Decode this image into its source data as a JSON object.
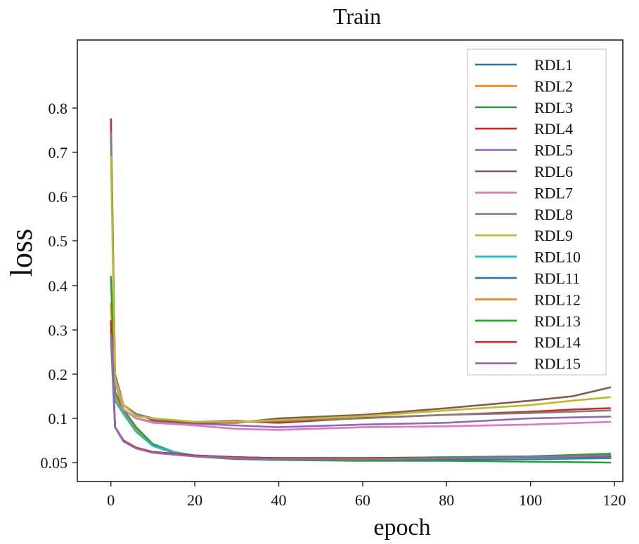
{
  "chart_data": {
    "type": "line",
    "title": "Train",
    "xlabel": "epoch",
    "ylabel": "loss",
    "xlim": [
      -8,
      122
    ],
    "xticks": [
      0,
      20,
      40,
      60,
      80,
      100,
      120
    ],
    "yticks": [
      0.05,
      0.1,
      0.2,
      0.3,
      0.4,
      0.5,
      0.6,
      0.7,
      0.8
    ],
    "ytick_labels": [
      "0.05",
      "0.1",
      "0.2",
      "0.3",
      "0.4",
      "0.5",
      "0.6",
      "0.7",
      "0.8"
    ],
    "grid": false,
    "legend_position": "top-right",
    "series": [
      {
        "name": "RDL1",
        "color": "#1f77b4",
        "values": [
          [
            0,
            0.29
          ],
          [
            1,
            0.14
          ],
          [
            3,
            0.11
          ],
          [
            6,
            0.085
          ],
          [
            10,
            0.069
          ],
          [
            15,
            0.061
          ],
          [
            20,
            0.057
          ],
          [
            30,
            0.054
          ],
          [
            40,
            0.053
          ],
          [
            60,
            0.053
          ],
          [
            80,
            0.053
          ],
          [
            100,
            0.054
          ],
          [
            119,
            0.055
          ]
        ]
      },
      {
        "name": "RDL2",
        "color": "#ff7f0e",
        "values": [
          [
            0,
            0.36
          ],
          [
            1,
            0.15
          ],
          [
            3,
            0.115
          ],
          [
            6,
            0.088
          ],
          [
            10,
            0.07
          ],
          [
            15,
            0.062
          ],
          [
            20,
            0.058
          ],
          [
            30,
            0.055
          ],
          [
            40,
            0.054
          ],
          [
            60,
            0.054
          ],
          [
            80,
            0.055
          ],
          [
            100,
            0.057
          ],
          [
            119,
            0.058
          ]
        ]
      },
      {
        "name": "RDL3",
        "color": "#2ca02c",
        "values": [
          [
            0,
            0.42
          ],
          [
            1,
            0.16
          ],
          [
            3,
            0.12
          ],
          [
            6,
            0.09
          ],
          [
            10,
            0.071
          ],
          [
            15,
            0.062
          ],
          [
            20,
            0.057
          ],
          [
            30,
            0.054
          ],
          [
            40,
            0.053
          ],
          [
            60,
            0.052
          ],
          [
            80,
            0.052
          ],
          [
            100,
            0.051
          ],
          [
            119,
            0.05
          ]
        ]
      },
      {
        "name": "RDL4",
        "color": "#d62728",
        "values": [
          [
            0,
            0.775
          ],
          [
            1,
            0.2
          ],
          [
            3,
            0.13
          ],
          [
            6,
            0.11
          ],
          [
            10,
            0.1
          ],
          [
            20,
            0.096
          ],
          [
            30,
            0.097
          ],
          [
            40,
            0.095
          ],
          [
            60,
            0.101
          ],
          [
            80,
            0.108
          ],
          [
            100,
            0.115
          ],
          [
            110,
            0.12
          ],
          [
            119,
            0.123
          ]
        ]
      },
      {
        "name": "RDL5",
        "color": "#9467bd",
        "values": [
          [
            0,
            0.3
          ],
          [
            1,
            0.2
          ],
          [
            3,
            0.12
          ],
          [
            6,
            0.1
          ],
          [
            10,
            0.096
          ],
          [
            20,
            0.094
          ],
          [
            30,
            0.092
          ],
          [
            40,
            0.09
          ],
          [
            60,
            0.093
          ],
          [
            80,
            0.095
          ],
          [
            100,
            0.1
          ],
          [
            110,
            0.102
          ],
          [
            119,
            0.104
          ]
        ]
      },
      {
        "name": "RDL6",
        "color": "#8c564b",
        "values": [
          [
            0,
            0.74
          ],
          [
            1,
            0.19
          ],
          [
            3,
            0.13
          ],
          [
            6,
            0.11
          ],
          [
            10,
            0.098
          ],
          [
            20,
            0.095
          ],
          [
            30,
            0.095
          ],
          [
            40,
            0.1
          ],
          [
            60,
            0.108
          ],
          [
            80,
            0.123
          ],
          [
            100,
            0.14
          ],
          [
            110,
            0.15
          ],
          [
            119,
            0.17
          ]
        ]
      },
      {
        "name": "RDL7",
        "color": "#e377c2",
        "values": [
          [
            0,
            0.3
          ],
          [
            1,
            0.18
          ],
          [
            3,
            0.12
          ],
          [
            6,
            0.1
          ],
          [
            10,
            0.095
          ],
          [
            20,
            0.092
          ],
          [
            30,
            0.088
          ],
          [
            40,
            0.087
          ],
          [
            60,
            0.09
          ],
          [
            80,
            0.091
          ],
          [
            100,
            0.093
          ],
          [
            119,
            0.096
          ]
        ]
      },
      {
        "name": "RDL8",
        "color": "#7f7f7f",
        "values": [
          [
            0,
            0.745
          ],
          [
            1,
            0.19
          ],
          [
            3,
            0.13
          ],
          [
            6,
            0.11
          ],
          [
            10,
            0.1
          ],
          [
            20,
            0.096
          ],
          [
            30,
            0.096
          ],
          [
            40,
            0.097
          ],
          [
            60,
            0.1
          ],
          [
            80,
            0.108
          ],
          [
            100,
            0.112
          ],
          [
            110,
            0.115
          ],
          [
            119,
            0.118
          ]
        ]
      },
      {
        "name": "RDL9",
        "color": "#bcbd22",
        "values": [
          [
            0,
            0.69
          ],
          [
            1,
            0.19
          ],
          [
            3,
            0.13
          ],
          [
            6,
            0.105
          ],
          [
            10,
            0.1
          ],
          [
            20,
            0.096
          ],
          [
            30,
            0.096
          ],
          [
            40,
            0.098
          ],
          [
            60,
            0.105
          ],
          [
            80,
            0.118
          ],
          [
            100,
            0.13
          ],
          [
            110,
            0.14
          ],
          [
            119,
            0.148
          ]
        ]
      },
      {
        "name": "RDL10",
        "color": "#17becf",
        "values": [
          [
            0,
            0.3
          ],
          [
            1,
            0.14
          ],
          [
            3,
            0.11
          ],
          [
            6,
            0.085
          ],
          [
            10,
            0.069
          ],
          [
            15,
            0.062
          ],
          [
            20,
            0.058
          ],
          [
            30,
            0.055
          ],
          [
            40,
            0.054
          ],
          [
            60,
            0.054
          ],
          [
            80,
            0.055
          ],
          [
            100,
            0.055
          ],
          [
            119,
            0.056
          ]
        ]
      },
      {
        "name": "RDL11",
        "color": "#1f77b4",
        "values": [
          [
            0,
            0.28
          ],
          [
            1,
            0.09
          ],
          [
            3,
            0.075
          ],
          [
            6,
            0.066
          ],
          [
            10,
            0.062
          ],
          [
            15,
            0.06
          ],
          [
            20,
            0.058
          ],
          [
            30,
            0.056
          ],
          [
            40,
            0.055
          ],
          [
            60,
            0.055
          ],
          [
            80,
            0.055
          ],
          [
            100,
            0.056
          ],
          [
            119,
            0.057
          ]
        ]
      },
      {
        "name": "RDL12",
        "color": "#ff7f0e",
        "values": [
          [
            0,
            0.32
          ],
          [
            1,
            0.09
          ],
          [
            3,
            0.074
          ],
          [
            6,
            0.066
          ],
          [
            10,
            0.062
          ],
          [
            15,
            0.06
          ],
          [
            20,
            0.058
          ],
          [
            30,
            0.056
          ],
          [
            40,
            0.055
          ],
          [
            60,
            0.055
          ],
          [
            80,
            0.056
          ],
          [
            100,
            0.057
          ],
          [
            119,
            0.058
          ]
        ]
      },
      {
        "name": "RDL13",
        "color": "#2ca02c",
        "values": [
          [
            0,
            0.3
          ],
          [
            1,
            0.09
          ],
          [
            3,
            0.074
          ],
          [
            6,
            0.066
          ],
          [
            10,
            0.062
          ],
          [
            15,
            0.06
          ],
          [
            20,
            0.058
          ],
          [
            30,
            0.056
          ],
          [
            40,
            0.055
          ],
          [
            60,
            0.055
          ],
          [
            80,
            0.056
          ],
          [
            100,
            0.057
          ],
          [
            119,
            0.06
          ]
        ]
      },
      {
        "name": "RDL14",
        "color": "#d62728",
        "values": [
          [
            0,
            0.32
          ],
          [
            1,
            0.09
          ],
          [
            3,
            0.075
          ],
          [
            6,
            0.067
          ],
          [
            10,
            0.062
          ],
          [
            15,
            0.06
          ],
          [
            20,
            0.058
          ],
          [
            30,
            0.056
          ],
          [
            40,
            0.055
          ],
          [
            60,
            0.055
          ],
          [
            80,
            0.055
          ],
          [
            100,
            0.056
          ],
          [
            119,
            0.057
          ]
        ]
      },
      {
        "name": "RDL15",
        "color": "#9467bd",
        "values": [
          [
            0,
            0.29
          ],
          [
            1,
            0.09
          ],
          [
            3,
            0.074
          ],
          [
            6,
            0.066
          ],
          [
            10,
            0.061
          ],
          [
            15,
            0.059
          ],
          [
            20,
            0.057
          ],
          [
            30,
            0.055
          ],
          [
            40,
            0.054
          ],
          [
            60,
            0.054
          ],
          [
            80,
            0.055
          ],
          [
            100,
            0.056
          ],
          [
            119,
            0.058
          ]
        ]
      }
    ]
  }
}
